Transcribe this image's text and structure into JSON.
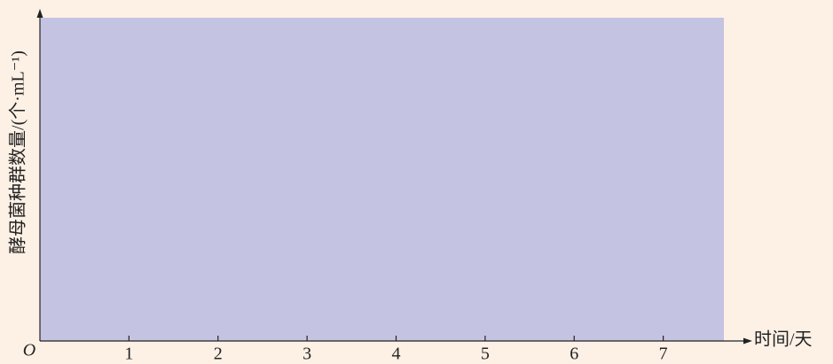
{
  "chart_data": {
    "type": "blank",
    "x_label": "时间/天",
    "y_label": "酵母菌种群数量/(个·mL⁻¹)",
    "origin_label": "O",
    "xlim": [
      0,
      8
    ],
    "xticks": [
      1,
      2,
      3,
      4,
      5,
      6,
      7
    ]
  }
}
